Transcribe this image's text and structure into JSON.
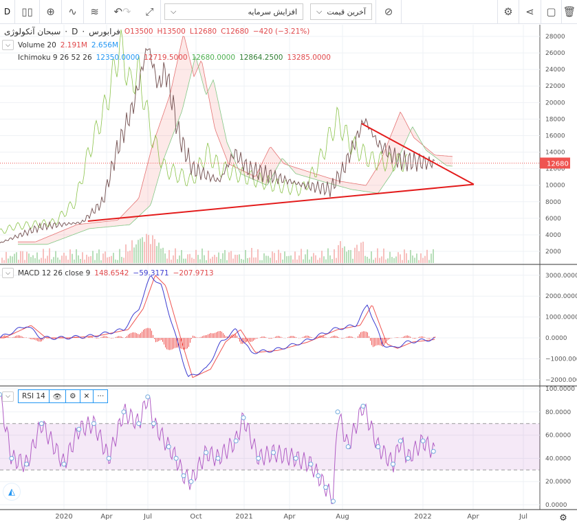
{
  "toolbar": {
    "interval": "D",
    "indicator_select": "افزایش سرمایه",
    "price_select": "آخرین قیمت"
  },
  "header": {
    "symbol": "سبحان آنکولوژی",
    "interval": "D",
    "exchange": "فرابورس",
    "open": "O13500",
    "high": "H13500",
    "low": "L12680",
    "close": "C12680",
    "change": "−420 (−3.21%)"
  },
  "volume": {
    "label": "Volume 20",
    "v1": "2.191M",
    "v2": "2.656M"
  },
  "ichimoku": {
    "label": "Ichimoku 9 26 52 26",
    "v1": "12350.0000",
    "v2": "12719.5000",
    "v3": "12680.0000",
    "v4": "12864.2500",
    "v5": "13285.0000"
  },
  "macd": {
    "label": "MACD 12 26 close 9",
    "v1": "148.6542",
    "v2": "−59.3171",
    "v3": "−207.9713"
  },
  "rsi": {
    "label": "RSI 14"
  },
  "last_price": "12680",
  "colors": {
    "up": "#26a69a",
    "down": "#ef5350",
    "macd": "#3b3bd0",
    "signal": "#ef5350",
    "rsi": "#9c27b0",
    "trend": "#e31b1b",
    "accent": "#2196f3"
  },
  "chart_data": [
    {
      "type": "line",
      "title": "Price (Ichimoku)",
      "xunit": "months since Jan 2020",
      "x": [
        -4.3,
        -1.5,
        1.2,
        2.6,
        3.5,
        4.7,
        5.6,
        6.3,
        6.8,
        7.7,
        8.6,
        10.4,
        11.4,
        12.3,
        14.1,
        16,
        17.8,
        18.7,
        20.1,
        21,
        22.4,
        24.7
      ],
      "y": [
        3000,
        5000,
        5500,
        8000,
        14000,
        20000,
        27000,
        22000,
        24000,
        16000,
        12000,
        10500,
        14000,
        12000,
        11000,
        10000,
        9500,
        12000,
        18000,
        15000,
        13000,
        12680
      ],
      "ylim": [
        0,
        29000
      ],
      "yticks": [
        "2000",
        "4000",
        "6000",
        "8000",
        "10000",
        "12000",
        "14000",
        "16000",
        "18000",
        "20000",
        "22000",
        "24000",
        "26000",
        "28000"
      ],
      "trendlines": [
        {
          "from": [
            19.9,
            17450
          ],
          "to": [
            27.4,
            10100
          ]
        },
        {
          "from": [
            1.6,
            5660
          ],
          "to": [
            27.4,
            10100
          ]
        }
      ]
    },
    {
      "type": "line",
      "title": "MACD 12 26 close 9",
      "x": [
        -4.3,
        -2.5,
        -1.5,
        0,
        2,
        4,
        5,
        5.8,
        6.5,
        7.5,
        8.3,
        9.5,
        10.5,
        11.5,
        12.5,
        14,
        16,
        18,
        19.5,
        20.3,
        21.3,
        22,
        23,
        24.7
      ],
      "y": [
        0,
        600,
        0,
        0,
        100,
        400,
        1400,
        3000,
        2500,
        0,
        -1900,
        -1500,
        -200,
        400,
        -700,
        -600,
        -200,
        400,
        600,
        1600,
        -300,
        -500,
        -200,
        -59
      ],
      "ylim": [
        -2200,
        3300
      ],
      "yticks": [
        "−2000.0000",
        "−1000.0000",
        "0.0000",
        "1000.0000",
        "2000.0000",
        "3000.0000"
      ]
    },
    {
      "type": "line",
      "title": "RSI 14",
      "x": [
        -4.3,
        -3.5,
        -2.5,
        -1.5,
        0,
        1,
        2,
        3,
        4,
        5,
        5.6,
        6,
        7,
        7.5,
        8,
        8.5,
        9.5,
        10.3,
        11.5,
        12,
        13,
        14,
        15.5,
        16.5,
        17,
        17.5,
        18,
        18.3,
        19,
        20,
        21,
        22,
        22.5,
        23,
        24,
        24.7
      ],
      "y": [
        95,
        40,
        35,
        70,
        35,
        65,
        70,
        40,
        80,
        70,
        93,
        70,
        50,
        40,
        25,
        20,
        45,
        40,
        55,
        75,
        40,
        45,
        40,
        35,
        25,
        15,
        3,
        80,
        50,
        85,
        50,
        35,
        55,
        40,
        55,
        46
      ],
      "ylim": [
        0,
        100
      ],
      "bands": [
        30,
        70
      ],
      "yticks": [
        "0.0000",
        "20.0000",
        "40.0000",
        "60.0000",
        "80.0000",
        "100.0000"
      ]
    }
  ],
  "time_axis": [
    "2020",
    "Apr",
    "Jul",
    "Oct",
    "2021",
    "Apr",
    "Aug",
    "2022",
    "Apr",
    "Jul"
  ]
}
